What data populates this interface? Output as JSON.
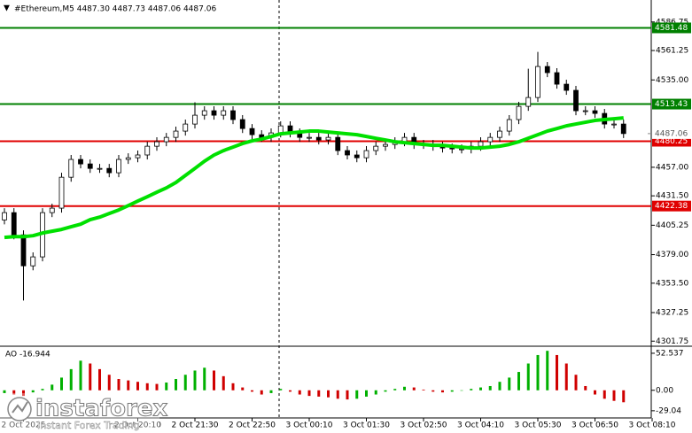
{
  "chart_data": {
    "type": "candlestick",
    "title": "#Ethereum,M5  4487.30 4487.73 4487.06 4487.06",
    "categories": [
      null,
      null,
      "2 Oct 2025",
      null,
      null,
      null,
      null,
      null,
      null,
      null,
      null,
      null,
      null,
      null,
      "2 Oct 20:10",
      null,
      null,
      null,
      null,
      null,
      "2 Oct 21:30",
      null,
      null,
      null,
      null,
      null,
      "2 Oct 22:50",
      null,
      null,
      null,
      null,
      null,
      "3 Oct 00:10",
      null,
      null,
      null,
      null,
      null,
      "3 Oct 01:30",
      null,
      null,
      null,
      null,
      null,
      "3 Oct 02:50",
      null,
      null,
      null,
      null,
      null,
      "3 Oct 04:10",
      null,
      null,
      null,
      null,
      null,
      "3 Oct 05:30",
      null,
      null,
      null,
      null,
      null,
      "3 Oct 06:50",
      null,
      null,
      null,
      null,
      null,
      "3 Oct 08:10"
    ],
    "open": [
      4410.0,
      4416.5,
      4396.7,
      4369.0,
      4377.0,
      4416.5,
      4420.5,
      4448.1,
      4464.0,
      4460.0,
      4456.0,
      4456.0,
      4452.1,
      4464.0,
      4465.5,
      4468.0,
      4475.8,
      4479.8,
      4483.7,
      4489.3,
      4495.6,
      4503.5,
      4507.5,
      4503.5,
      4507.5,
      4499.6,
      4491.6,
      4486.1,
      4483.7,
      4487.7,
      4494.0,
      4487.7,
      4483.7,
      4483.7,
      4481.4,
      4483.7,
      4471.9,
      4468.0,
      4465.5,
      4471.9,
      4475.8,
      4477.4,
      4479.8,
      4483.7,
      4477.4,
      4477.4,
      4475.8,
      4474.2,
      4473.4,
      4473.4,
      4475.8,
      4479.8,
      4483.7,
      4489.3,
      4499.6,
      4511.4,
      4519.3,
      4547.0,
      4541.5,
      4531.2,
      4525.7,
      4507.5,
      4507.5,
      4505.1,
      4495.6,
      4495.6,
      null,
      null,
      null
    ],
    "high": [
      4420.5,
      4420.5,
      4400.7,
      4381.0,
      4420.5,
      4424.5,
      4452.1,
      4468.0,
      4468.0,
      4464.0,
      4460.0,
      4460.0,
      4468.0,
      4469.5,
      4472.0,
      4479.8,
      4483.8,
      4487.7,
      4493.3,
      4499.6,
      4515.0,
      4511.5,
      4511.5,
      4511.5,
      4511.5,
      4503.6,
      4495.6,
      4490.1,
      4491.7,
      4498.0,
      4498.0,
      4491.7,
      4487.7,
      4487.7,
      4487.7,
      4487.7,
      4475.9,
      4472.0,
      4475.9,
      4479.8,
      4481.4,
      4483.8,
      4487.7,
      4487.7,
      4481.4,
      4481.4,
      4479.8,
      4478.2,
      4477.4,
      4479.8,
      4483.8,
      4487.7,
      4493.3,
      4503.6,
      4515.4,
      4545.0,
      4560.0,
      4551.0,
      4545.5,
      4535.2,
      4529.7,
      4511.5,
      4511.5,
      4509.1,
      4499.6,
      4499.6,
      null,
      null,
      null
    ],
    "low": [
      4406.0,
      4392.7,
      4338.0,
      4365.0,
      4373.0,
      4412.5,
      4416.5,
      4444.1,
      4456.0,
      4452.0,
      4452.0,
      4448.1,
      4448.1,
      4460.0,
      4461.5,
      4464.0,
      4471.8,
      4475.8,
      4479.7,
      4485.3,
      4491.6,
      4499.5,
      4499.5,
      4499.5,
      4495.6,
      4487.6,
      4482.1,
      4479.7,
      4479.7,
      4483.7,
      4483.7,
      4479.7,
      4479.7,
      4477.4,
      4477.4,
      4467.9,
      4464.0,
      4461.5,
      4461.5,
      4467.9,
      4471.8,
      4473.4,
      4475.8,
      4473.4,
      4473.4,
      4471.8,
      4470.2,
      4469.4,
      4469.4,
      4469.4,
      4471.8,
      4475.8,
      4479.7,
      4485.3,
      4495.6,
      4507.4,
      4515.3,
      4537.5,
      4527.2,
      4521.7,
      4503.5,
      4503.5,
      4501.1,
      4491.6,
      4491.6,
      4483.1,
      null,
      null,
      null
    ],
    "close": [
      4416.5,
      4396.7,
      4369.0,
      4377.0,
      4416.5,
      4420.5,
      4448.1,
      4464.0,
      4460.0,
      4456.0,
      4456.0,
      4452.1,
      4464.0,
      4465.5,
      4468.0,
      4475.8,
      4479.8,
      4483.7,
      4489.3,
      4495.6,
      4503.5,
      4507.5,
      4503.5,
      4507.5,
      4499.6,
      4491.6,
      4486.1,
      4483.7,
      4487.7,
      4494.0,
      4487.7,
      4483.7,
      4483.7,
      4481.4,
      4483.7,
      4471.9,
      4468.0,
      4465.5,
      4471.9,
      4475.8,
      4477.4,
      4479.8,
      4483.7,
      4477.4,
      4477.4,
      4475.8,
      4474.2,
      4473.4,
      4473.4,
      4475.8,
      4479.8,
      4483.7,
      4489.3,
      4499.6,
      4511.4,
      4519.3,
      4547.0,
      4541.5,
      4531.2,
      4525.7,
      4507.5,
      4507.5,
      4505.1,
      4495.6,
      4495.6,
      4487.1,
      null,
      null,
      null
    ],
    "moving_average": {
      "color": "#00e000",
      "values": [
        4394.4,
        4395.1,
        4395.1,
        4395.9,
        4398.3,
        4399.9,
        4401.5,
        4403.9,
        4406.2,
        4410.2,
        4412.5,
        4415.7,
        4418.9,
        4422.8,
        4426.8,
        4430.7,
        4434.7,
        4438.6,
        4443.4,
        4449.7,
        4456.0,
        4462.4,
        4467.9,
        4471.9,
        4475.0,
        4478.2,
        4480.6,
        4482.2,
        4484.5,
        4486.9,
        4487.7,
        4488.5,
        4489.3,
        4489.3,
        4488.5,
        4487.7,
        4486.9,
        4486.1,
        4484.5,
        4482.9,
        4481.4,
        4479.8,
        4479.0,
        4478.2,
        4477.4,
        4476.6,
        4476.6,
        4475.8,
        4475.0,
        4474.2,
        4474.2,
        4475.0,
        4475.8,
        4477.4,
        4479.8,
        4482.9,
        4486.1,
        4489.3,
        4491.6,
        4494.0,
        4495.6,
        4497.2,
        4498.8,
        4499.6,
        4500.3,
        4501.1,
        null,
        null,
        null
      ]
    },
    "ylim": [
      4298,
      4604
    ],
    "yticks": [
      4586.75,
      4561.25,
      {
        "value": 4535,
        "label": "4535.00"
      },
      {
        "value": 4457,
        "label": "4457.00"
      },
      {
        "value": 4431.5,
        "label": "4431.50"
      },
      4405.25,
      {
        "value": 4379,
        "label": "4379.00"
      },
      {
        "value": 4353.5,
        "label": "4353.50"
      },
      4327.25,
      4301.75
    ],
    "levels": [
      {
        "value": 4581.48,
        "color": "#008000"
      },
      {
        "value": 4513.43,
        "color": "#008000"
      },
      {
        "value": 4480.25,
        "color": "#e00000"
      },
      {
        "value": 4422.38,
        "color": "#e00000"
      }
    ],
    "current_price": 4487.06,
    "indicator": {
      "title": "AO -16.944",
      "up_color": "#00b000",
      "down_color": "#d00000",
      "values": [
        -4,
        -6,
        -8,
        -3,
        2,
        8,
        18,
        30,
        42,
        38,
        30,
        22,
        16,
        14,
        12,
        10,
        9,
        11,
        16,
        22,
        28,
        32,
        28,
        20,
        10,
        4,
        -2,
        -6,
        -4,
        2,
        -2,
        -6,
        -8,
        -9,
        -10,
        -12,
        -13,
        -12,
        -9,
        -6,
        -2,
        2,
        5,
        4,
        1,
        -2,
        -3,
        -2,
        0,
        2,
        4,
        6,
        12,
        18,
        26,
        38,
        50,
        56,
        50,
        38,
        22,
        6,
        -6,
        -12,
        -15,
        -17,
        null,
        null,
        null
      ],
      "ylim": [
        -38,
        60
      ],
      "yticks": [
        52.537,
        {
          "value": 0,
          "label": "0.00"
        },
        -29.04
      ]
    },
    "logo": {
      "name": "instaforex",
      "tagline": "Instant Forex Trading"
    }
  }
}
